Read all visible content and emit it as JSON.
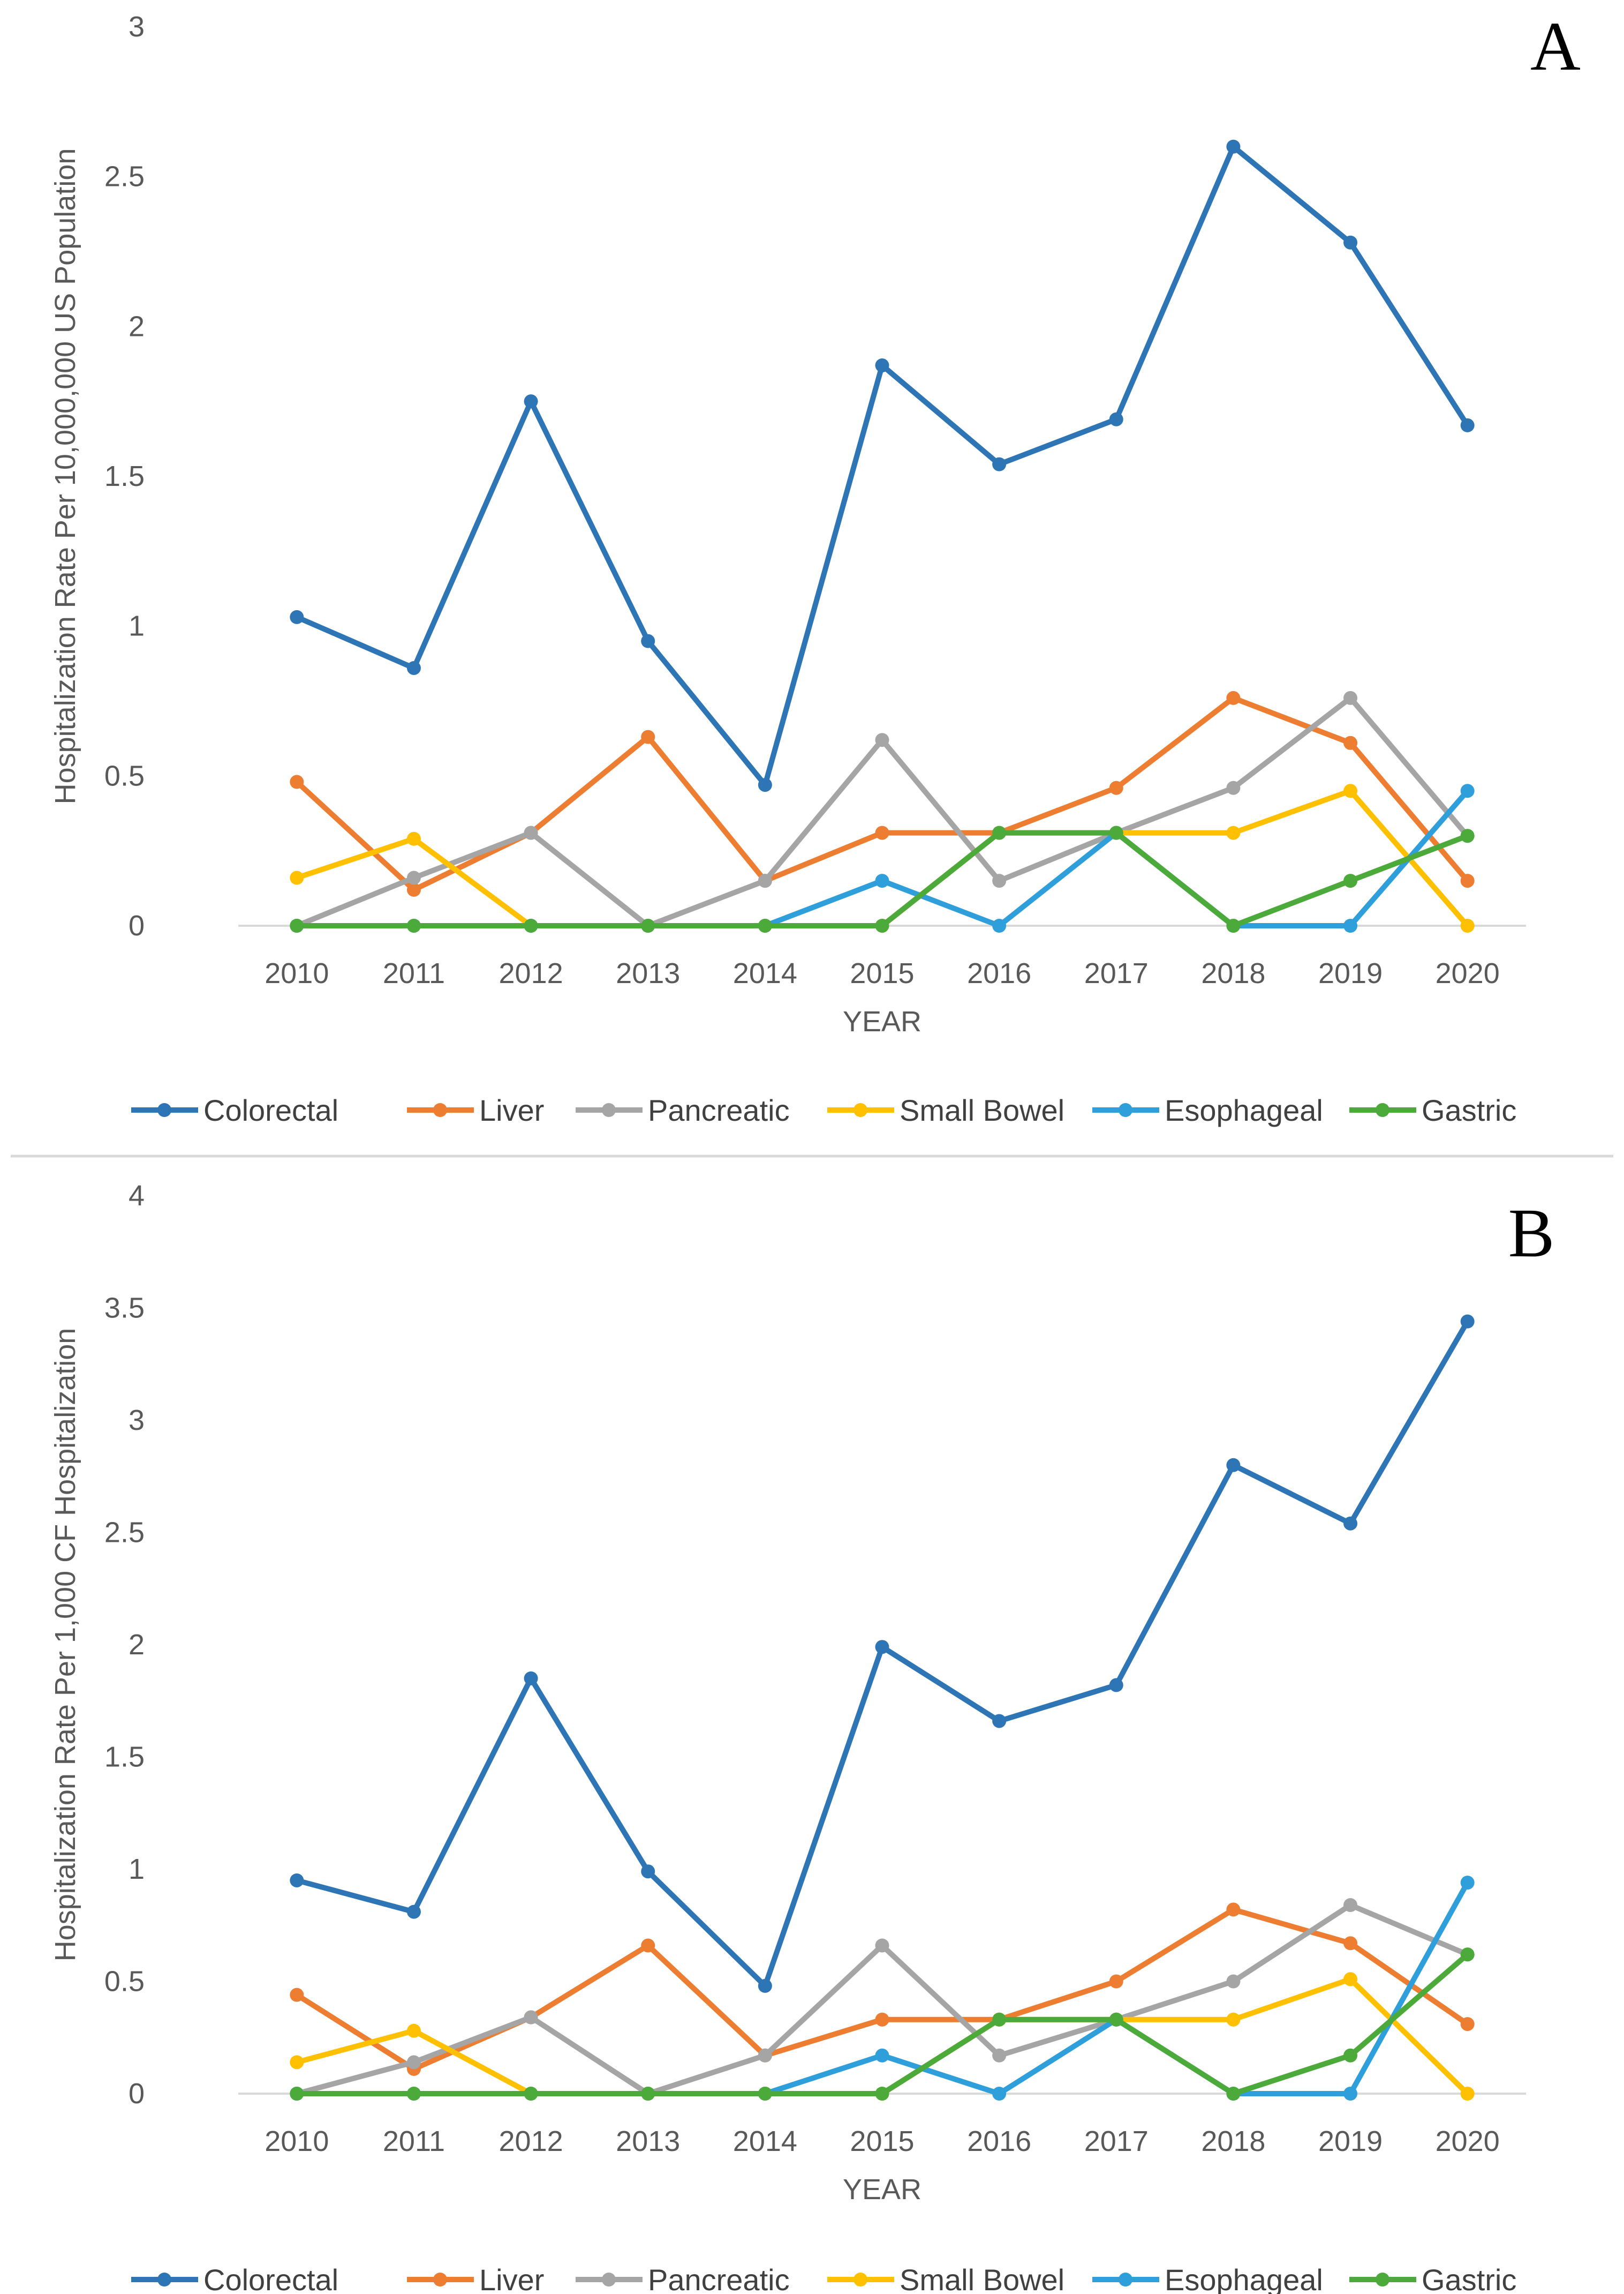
{
  "chart_data": [
    {
      "type": "line",
      "panel_label": "A",
      "xlabel": "YEAR",
      "ylabel": "Hospitalization Rate Per 10,000,000 US Population",
      "ylim": [
        0,
        3
      ],
      "yticks": [
        "0",
        "0.5",
        "1",
        "1.5",
        "2",
        "2.5",
        "3"
      ],
      "categories": [
        "2010",
        "2011",
        "2012",
        "2013",
        "2014",
        "2015",
        "2016",
        "2017",
        "2018",
        "2019",
        "2020"
      ],
      "grid": "horizontal baseline only",
      "legend": "bottom",
      "series": [
        {
          "name": "Colorectal",
          "color": "#2E75B6",
          "values": [
            1.03,
            0.86,
            1.75,
            0.95,
            0.47,
            1.87,
            1.54,
            1.69,
            2.6,
            2.28,
            1.67
          ]
        },
        {
          "name": "Liver",
          "color": "#ED7D31",
          "values": [
            0.48,
            0.12,
            0.31,
            0.63,
            0.15,
            0.31,
            0.31,
            0.46,
            0.76,
            0.61,
            0.15
          ]
        },
        {
          "name": "Pancreatic",
          "color": "#A5A5A5",
          "values": [
            0,
            0.16,
            0.31,
            0,
            0.15,
            0.62,
            0.15,
            0.31,
            0.46,
            0.76,
            0.3
          ]
        },
        {
          "name": "Small Bowel",
          "color": "#FFC000",
          "values": [
            0.16,
            0.29,
            0,
            0,
            0,
            0,
            0.31,
            0.31,
            0.31,
            0.45,
            0
          ]
        },
        {
          "name": "Esophageal",
          "color": "#2F9FDB",
          "values": [
            0,
            0,
            0,
            0,
            0,
            0.15,
            0,
            0.31,
            0,
            0,
            0.45
          ]
        },
        {
          "name": "Gastric",
          "color": "#4CAA3A",
          "values": [
            0,
            0,
            0,
            0,
            0,
            0,
            0.31,
            0.31,
            0,
            0.15,
            0.3
          ]
        }
      ]
    },
    {
      "type": "line",
      "panel_label": "B",
      "xlabel": "YEAR",
      "ylabel": "Hospitalization Rate Per 1,000 CF Hospitalization",
      "ylim": [
        0,
        4
      ],
      "yticks": [
        "0",
        "0.5",
        "1",
        "1.5",
        "2",
        "2.5",
        "3",
        "3.5",
        "4"
      ],
      "categories": [
        "2010",
        "2011",
        "2012",
        "2013",
        "2014",
        "2015",
        "2016",
        "2017",
        "2018",
        "2019",
        "2020"
      ],
      "grid": "horizontal baseline only",
      "legend": "bottom",
      "series": [
        {
          "name": "Colorectal",
          "color": "#2E75B6",
          "values": [
            0.95,
            0.81,
            1.85,
            0.99,
            0.48,
            1.99,
            1.66,
            1.82,
            2.8,
            2.54,
            3.44
          ]
        },
        {
          "name": "Liver",
          "color": "#ED7D31",
          "values": [
            0.44,
            0.11,
            0.34,
            0.66,
            0.17,
            0.33,
            0.33,
            0.5,
            0.82,
            0.67,
            0.31
          ]
        },
        {
          "name": "Pancreatic",
          "color": "#A5A5A5",
          "values": [
            0,
            0.14,
            0.34,
            0,
            0.17,
            0.66,
            0.17,
            0.33,
            0.5,
            0.84,
            0.62
          ]
        },
        {
          "name": "Small Bowel",
          "color": "#FFC000",
          "values": [
            0.14,
            0.28,
            0,
            0,
            0,
            0,
            0.33,
            0.33,
            0.33,
            0.51,
            0
          ]
        },
        {
          "name": "Esophageal",
          "color": "#2F9FDB",
          "values": [
            0,
            0,
            0,
            0,
            0,
            0.17,
            0,
            0.33,
            0,
            0,
            0.94
          ]
        },
        {
          "name": "Gastric",
          "color": "#4CAA3A",
          "values": [
            0,
            0,
            0,
            0,
            0,
            0,
            0.33,
            0.33,
            0,
            0.17,
            0.62
          ]
        }
      ]
    }
  ]
}
